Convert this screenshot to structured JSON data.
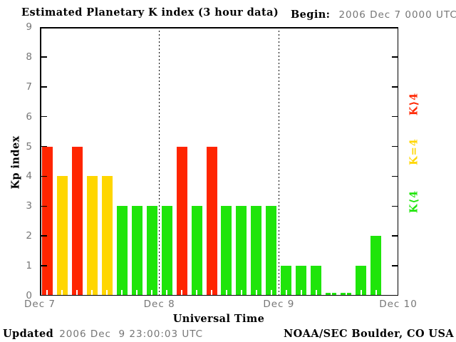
{
  "title": "Estimated Planetary K index (3 hour data)",
  "begin": {
    "label": "Begin:",
    "value": "2006 Dec 7 0000 UTC"
  },
  "footer": {
    "updated_label": "Updated",
    "updated_value": "2006 Dec  9 23:00:03 UTC",
    "credit": "NOAA/SEC Boulder, CO USA"
  },
  "colors": {
    "red_high": "#ff2500",
    "yellow_mid": "#ffd600",
    "green_low": "#1fe50a",
    "text_gray": "#767676",
    "axis_black": "#000000"
  },
  "legend": [
    {
      "text": "K⟩4",
      "meaning": "K>4",
      "color": "#ff2500"
    },
    {
      "text": "K=4",
      "meaning": "K=4",
      "color": "#ffd600"
    },
    {
      "text": "K⟨4",
      "meaning": "K<4",
      "color": "#1fe50a"
    }
  ],
  "chart_data": {
    "type": "bar",
    "title": "Estimated Planetary K index (3 hour data)",
    "xlabel": "Universal Time",
    "ylabel": "Kp index",
    "ylim": [
      0,
      9
    ],
    "yticks": [
      0,
      1,
      2,
      3,
      4,
      5,
      6,
      7,
      8,
      9
    ],
    "interval_hours": 3,
    "x_day_labels": [
      "Dec 7",
      "Dec 8",
      "Dec 9",
      "Dec 10"
    ],
    "grid": "dotted vertical lines at day boundaries",
    "legend_position": "right, rotated",
    "color_rule": {
      "red": "K>4",
      "yellow": "K=4",
      "green": "K<4"
    },
    "days": [
      {
        "date": "Dec 7",
        "values": [
          5,
          4,
          5,
          4,
          4,
          3,
          3,
          3
        ]
      },
      {
        "date": "Dec 8",
        "values": [
          3,
          5,
          3,
          5,
          3,
          3,
          3,
          3
        ]
      },
      {
        "date": "Dec 9",
        "values": [
          1,
          1,
          1,
          0,
          0,
          1,
          2
        ]
      }
    ]
  }
}
